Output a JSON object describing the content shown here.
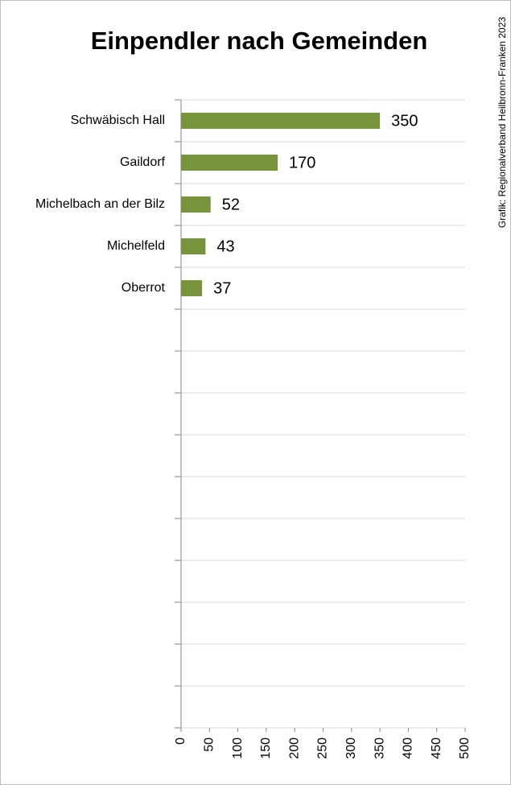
{
  "chart_data": {
    "type": "bar",
    "orientation": "horizontal",
    "title": "Einpendler nach Gemeinden",
    "source": "Grafik: Regionalverband Heilbronn-Franken 2023",
    "categories": [
      "Schwäbisch Hall",
      "Gaildorf",
      "Michelbach an der Bilz",
      "Michelfeld",
      "Oberrot",
      null,
      null,
      null,
      null,
      null,
      null,
      null,
      null,
      null,
      null
    ],
    "values": [
      350,
      170,
      52,
      43,
      37,
      null,
      null,
      null,
      null,
      null,
      null,
      null,
      null,
      null,
      null
    ],
    "color": "#77933c",
    "xlim": [
      0,
      500
    ],
    "xticks": [
      0,
      50,
      100,
      150,
      200,
      250,
      300,
      350,
      400,
      450,
      500
    ],
    "grid": true
  }
}
